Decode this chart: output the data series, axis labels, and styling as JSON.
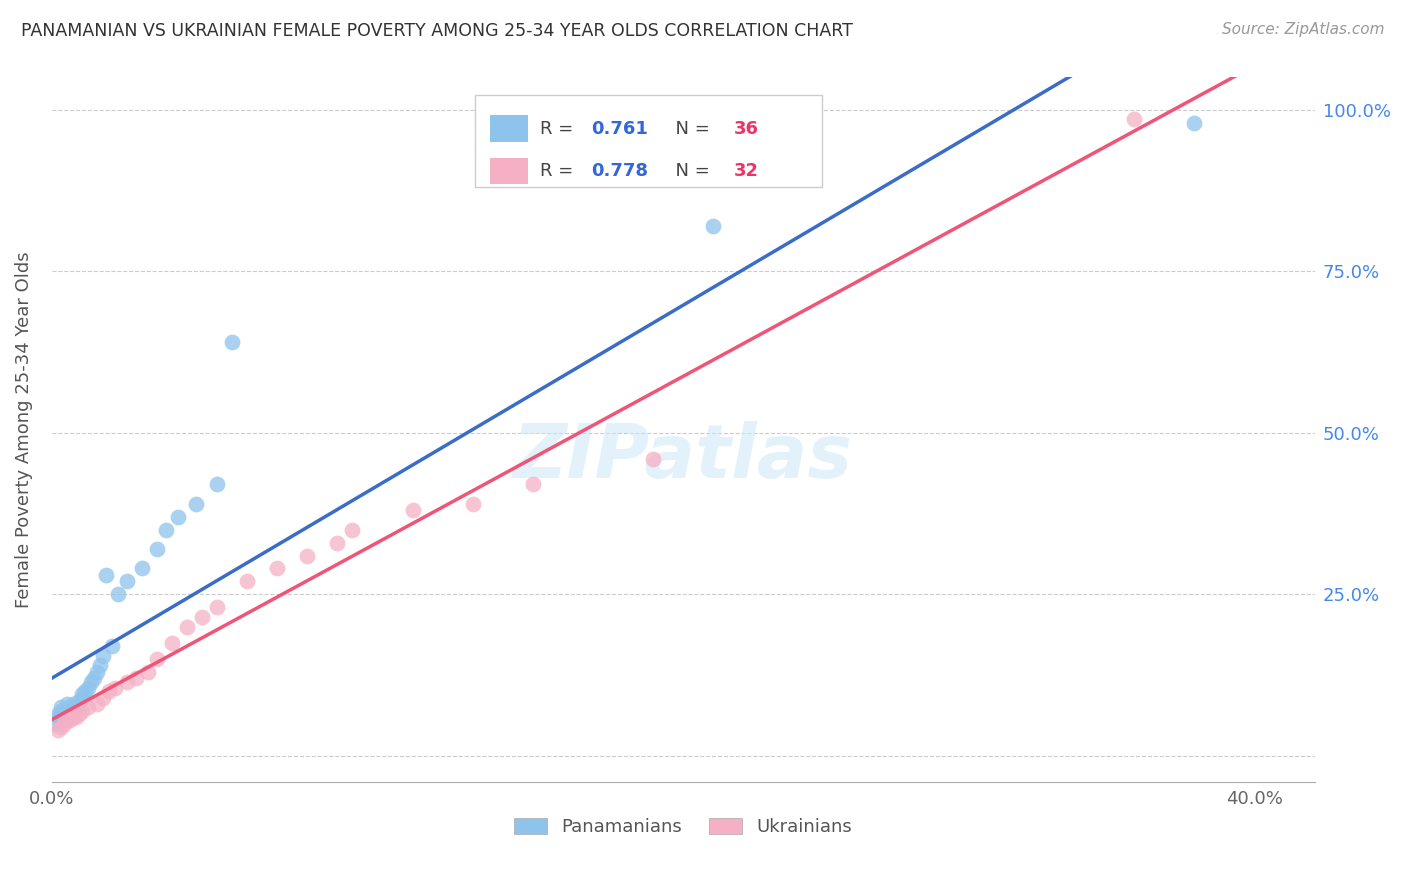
{
  "title": "PANAMANIAN VS UKRAINIAN FEMALE POVERTY AMONG 25-34 YEAR OLDS CORRELATION CHART",
  "source": "Source: ZipAtlas.com",
  "ylabel": "Female Poverty Among 25-34 Year Olds",
  "xlim": [
    0.0,
    0.42
  ],
  "ylim": [
    -0.04,
    1.05
  ],
  "watermark": "ZIPatlas",
  "pan_color": "#8EC4EC",
  "ukr_color": "#F5B0C5",
  "pan_line_color": "#3B6CC8",
  "ukr_line_color": "#EE5577",
  "r_color": "#3366DD",
  "n_color": "#EE3366",
  "pan_r": "0.761",
  "pan_n": "36",
  "ukr_r": "0.778",
  "ukr_n": "32",
  "pan_x": [
    0.001,
    0.002,
    0.002,
    0.003,
    0.003,
    0.004,
    0.005,
    0.005,
    0.006,
    0.006,
    0.007,
    0.007,
    0.008,
    0.009,
    0.01,
    0.01,
    0.011,
    0.012,
    0.013,
    0.014,
    0.015,
    0.016,
    0.017,
    0.018,
    0.02,
    0.022,
    0.025,
    0.03,
    0.035,
    0.038,
    0.042,
    0.048,
    0.055,
    0.06,
    0.22,
    0.38
  ],
  "pan_y": [
    0.05,
    0.06,
    0.065,
    0.07,
    0.075,
    0.055,
    0.065,
    0.08,
    0.06,
    0.07,
    0.075,
    0.08,
    0.075,
    0.085,
    0.09,
    0.095,
    0.1,
    0.105,
    0.115,
    0.12,
    0.13,
    0.14,
    0.155,
    0.28,
    0.17,
    0.25,
    0.27,
    0.29,
    0.32,
    0.35,
    0.37,
    0.39,
    0.42,
    0.64,
    0.82,
    0.98
  ],
  "ukr_x": [
    0.002,
    0.003,
    0.004,
    0.005,
    0.006,
    0.007,
    0.008,
    0.009,
    0.01,
    0.012,
    0.015,
    0.017,
    0.019,
    0.021,
    0.025,
    0.028,
    0.032,
    0.035,
    0.04,
    0.045,
    0.05,
    0.055,
    0.065,
    0.075,
    0.085,
    0.095,
    0.1,
    0.12,
    0.14,
    0.16,
    0.2,
    0.36
  ],
  "ukr_y": [
    0.04,
    0.045,
    0.05,
    0.055,
    0.055,
    0.06,
    0.06,
    0.065,
    0.07,
    0.075,
    0.08,
    0.09,
    0.1,
    0.105,
    0.115,
    0.12,
    0.13,
    0.15,
    0.175,
    0.2,
    0.215,
    0.23,
    0.27,
    0.29,
    0.31,
    0.33,
    0.35,
    0.38,
    0.39,
    0.42,
    0.46,
    0.985
  ]
}
